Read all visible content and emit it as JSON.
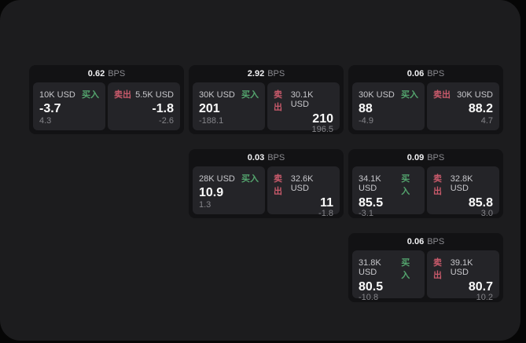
{
  "labels": {
    "bps_unit": "BPS",
    "buy": "买入",
    "sell": "卖出"
  },
  "colors": {
    "buy": "#54a56e",
    "sell": "#c95a6b",
    "panel_background": "#1c1c1e",
    "card_background": "#121214",
    "tile_background": "#242428"
  },
  "cards": [
    {
      "row": 1,
      "col": 1,
      "bps": "0.62",
      "buy": {
        "amount": "10K USD",
        "price": "-3.7",
        "delta": "4.3"
      },
      "sell": {
        "amount": "5.5K USD",
        "price": "-1.8",
        "delta": "-2.6"
      }
    },
    {
      "row": 1,
      "col": 2,
      "bps": "2.92",
      "buy": {
        "amount": "30K USD",
        "price": "201",
        "delta": "-188.1"
      },
      "sell": {
        "amount": "30.1K USD",
        "price": "210",
        "delta": "196.5"
      }
    },
    {
      "row": 1,
      "col": 3,
      "bps": "0.06",
      "buy": {
        "amount": "30K USD",
        "price": "88",
        "delta": "-4.9"
      },
      "sell": {
        "amount": "30K USD",
        "price": "88.2",
        "delta": "4.7"
      }
    },
    {
      "row": 2,
      "col": 2,
      "bps": "0.03",
      "buy": {
        "amount": "28K USD",
        "price": "10.9",
        "delta": "1.3"
      },
      "sell": {
        "amount": "32.6K USD",
        "price": "11",
        "delta": "-1.8"
      }
    },
    {
      "row": 2,
      "col": 3,
      "bps": "0.09",
      "buy": {
        "amount": "34.1K USD",
        "price": "85.5",
        "delta": "-3.1"
      },
      "sell": {
        "amount": "32.8K USD",
        "price": "85.8",
        "delta": "3.0"
      }
    },
    {
      "row": 3,
      "col": 3,
      "bps": "0.06",
      "buy": {
        "amount": "31.8K USD",
        "price": "80.5",
        "delta": "-10.8"
      },
      "sell": {
        "amount": "39.1K USD",
        "price": "80.7",
        "delta": "10.2"
      }
    }
  ]
}
